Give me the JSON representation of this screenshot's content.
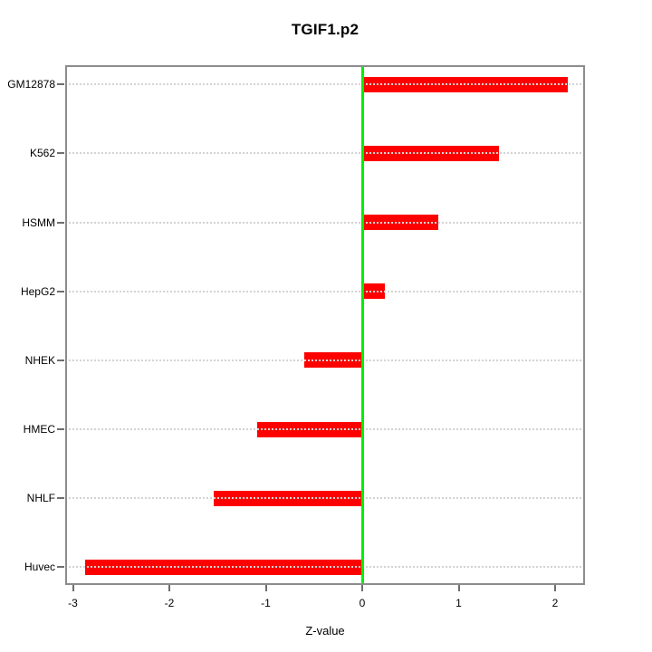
{
  "chart_data": {
    "type": "bar",
    "orientation": "horizontal",
    "title": "TGIF1.p2",
    "xlabel": "Z-value",
    "ylabel": "",
    "categories": [
      "GM12878",
      "K562",
      "HSMM",
      "HepG2",
      "NHEK",
      "HMEC",
      "NHLF",
      "Huvec"
    ],
    "values": [
      2.13,
      1.42,
      0.79,
      0.23,
      -0.6,
      -1.09,
      -1.54,
      -2.87
    ],
    "xlim": [
      -3.08,
      2.31
    ],
    "xticks": [
      -3,
      -2,
      -1,
      0,
      1,
      2
    ],
    "zero_line": 0,
    "grid": "dotted horizontal line per category, drawn over bars",
    "legend": "none",
    "colors": {
      "bar": "#ff0000",
      "zero_line": "#00ee00",
      "grid": "#d3d3d3",
      "axis_box": "#8c8c8c",
      "tick": "#6e6e6e",
      "text": "#000000",
      "background": "#ffffff"
    }
  }
}
